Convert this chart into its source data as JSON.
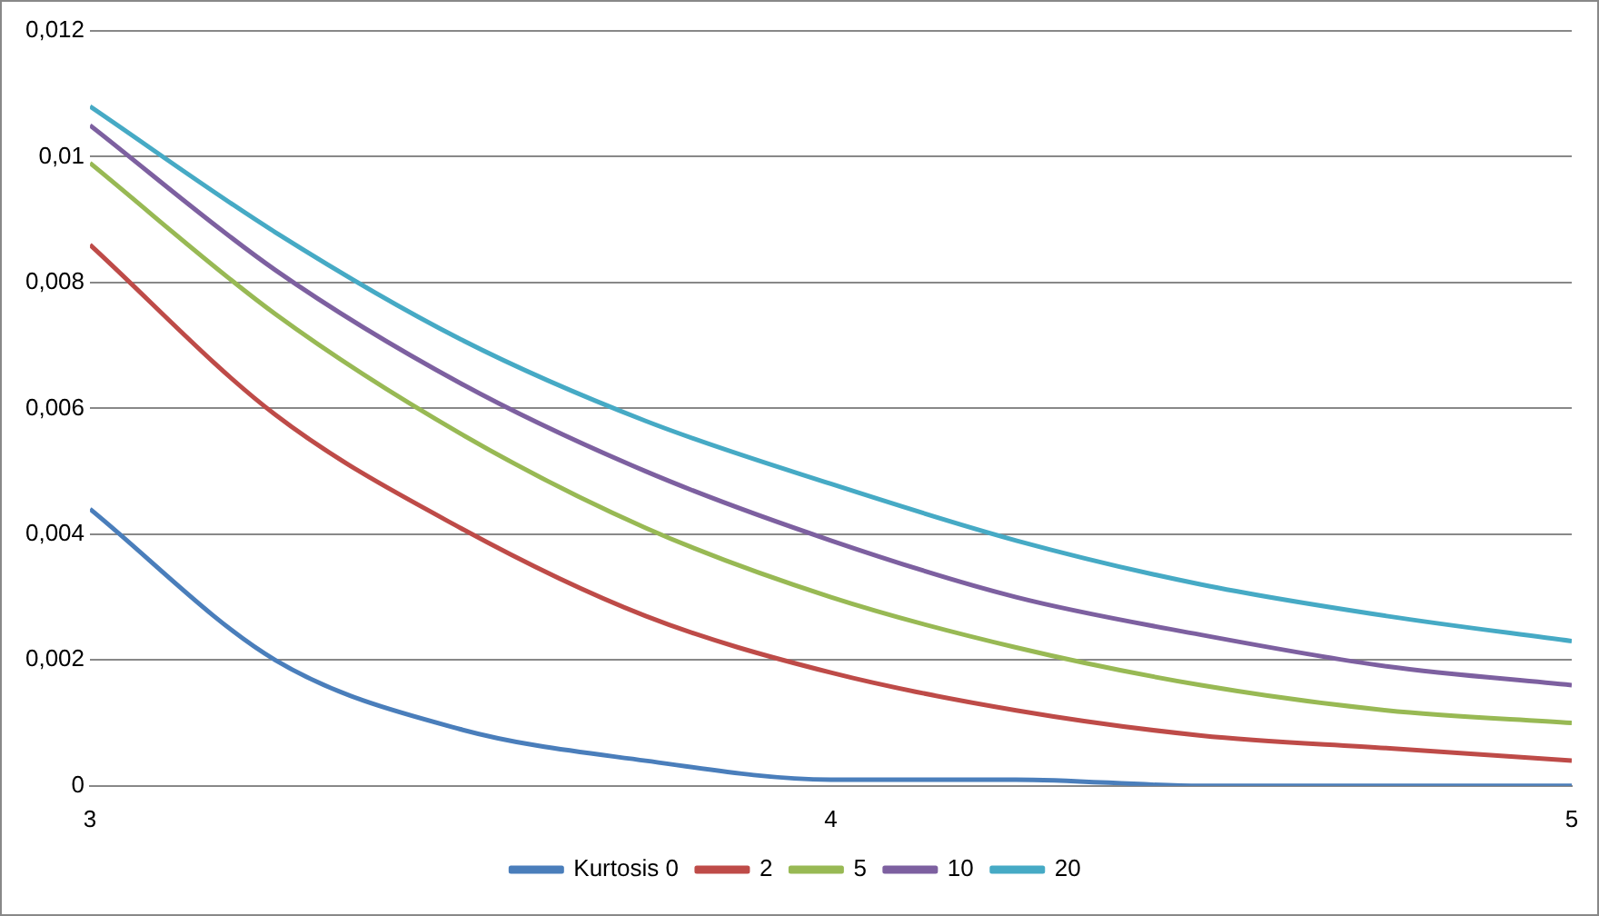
{
  "chart_data": {
    "type": "line",
    "x": [
      3,
      3.25,
      3.5,
      3.75,
      4,
      4.25,
      4.5,
      4.75,
      5
    ],
    "series": [
      {
        "name": "Kurtosis 0",
        "color": "#4a7ebb",
        "values": [
          0.0044,
          0.002,
          0.0009,
          0.0004,
          0.0001,
          0.0001,
          0,
          0,
          0
        ]
      },
      {
        "name": "2",
        "color": "#be4b48",
        "values": [
          0.0086,
          0.0059,
          0.0041,
          0.0027,
          0.0018,
          0.0012,
          0.0008,
          0.0006,
          0.0004
        ]
      },
      {
        "name": "5",
        "color": "#98b954",
        "values": [
          0.0099,
          0.0075,
          0.0056,
          0.0041,
          0.003,
          0.0022,
          0.0016,
          0.0012,
          0.001
        ]
      },
      {
        "name": "10",
        "color": "#7d60a0",
        "values": [
          0.0105,
          0.0082,
          0.0064,
          0.005,
          0.0039,
          0.003,
          0.0024,
          0.0019,
          0.0016
        ]
      },
      {
        "name": "20",
        "color": "#46aac5",
        "values": [
          0.0108,
          0.0088,
          0.0071,
          0.0058,
          0.0048,
          0.0039,
          0.0032,
          0.0027,
          0.0023
        ]
      }
    ],
    "xlim": [
      3,
      5
    ],
    "xticks": [
      3,
      4,
      5
    ],
    "ylim": [
      0,
      0.012
    ],
    "yticks": [
      0,
      {
        "value": 0.002,
        "label": "0,002"
      },
      {
        "value": 0.004,
        "label": "0,004"
      },
      {
        "value": 0.006,
        "label": "0,006"
      },
      {
        "value": 0.008,
        "label": "0,008"
      },
      {
        "value": 0.01,
        "label": "0,01"
      },
      {
        "value": 0.012,
        "label": "0,012"
      }
    ],
    "grid": "y",
    "legend": "bottom",
    "marker": "none",
    "line_style": "solid"
  }
}
